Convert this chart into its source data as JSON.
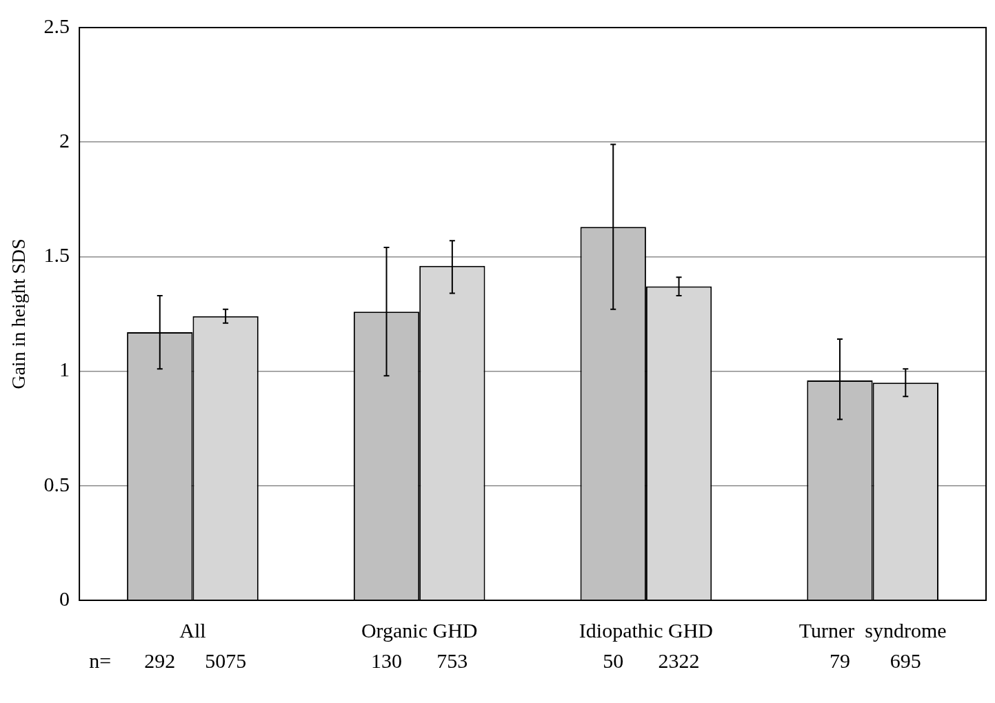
{
  "chart_data": {
    "type": "bar",
    "ylabel": "Gain in height SDS",
    "categories": [
      "All",
      "Organic GHD",
      "Idiopathic GHD",
      "Turner  syndrome"
    ],
    "series": [
      {
        "color": "#bfbfbf",
        "values": [
          1.17,
          1.26,
          1.63,
          0.96
        ],
        "errors": [
          [
            1.01,
            1.33
          ],
          [
            0.98,
            1.54
          ],
          [
            1.27,
            1.99
          ],
          [
            0.79,
            1.14
          ]
        ]
      },
      {
        "color": "#d6d6d6",
        "values": [
          1.24,
          1.46,
          1.37,
          0.95
        ],
        "errors": [
          [
            1.21,
            1.27
          ],
          [
            1.34,
            1.57
          ],
          [
            1.33,
            1.41
          ],
          [
            0.89,
            1.01
          ]
        ]
      }
    ],
    "ylim": [
      0,
      2.5
    ],
    "yticks": [
      0,
      0.5,
      1,
      1.5,
      2,
      2.5
    ],
    "grid": "y",
    "legend": false,
    "annotations": [
      "n=",
      "292",
      "5075",
      "130",
      "753",
      "50",
      "2322",
      "79",
      "695"
    ]
  }
}
